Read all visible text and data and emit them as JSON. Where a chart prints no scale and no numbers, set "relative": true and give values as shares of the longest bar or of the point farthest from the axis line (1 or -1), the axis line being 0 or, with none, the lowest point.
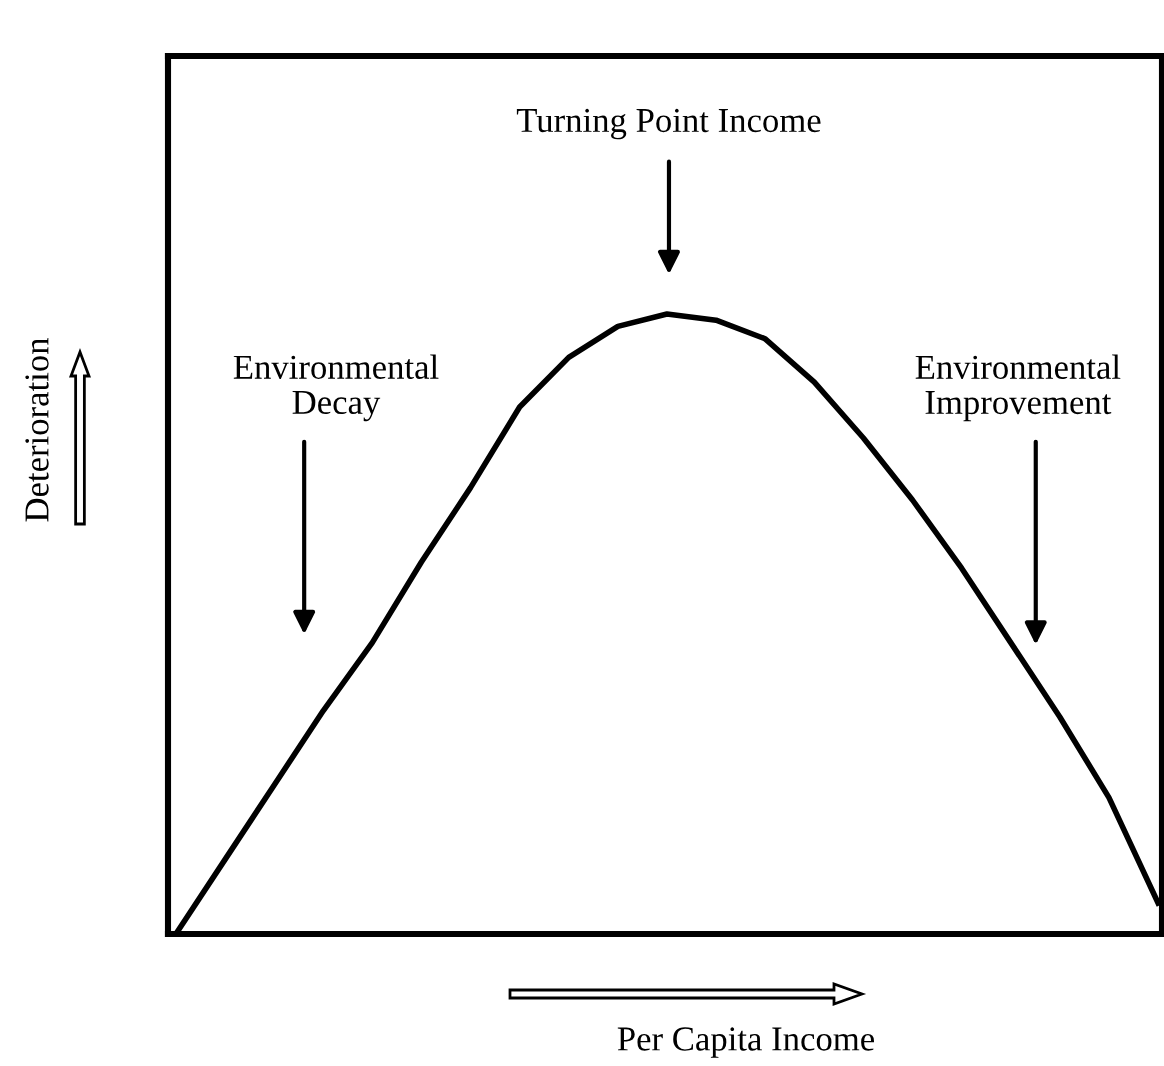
{
  "chart_data": {
    "type": "line",
    "relative": true,
    "xlabel": "Per Capita Income",
    "ylabel": "Deterioration",
    "categories": [
      null,
      null,
      null,
      null,
      null,
      null,
      null,
      null,
      null,
      null,
      null,
      null,
      null,
      null,
      null,
      null,
      null,
      null,
      null,
      null,
      null
    ],
    "series": [
      {
        "color": "#000000",
        "values": [
          0,
          0.12,
          0.24,
          0.36,
          0.47,
          0.6,
          0.72,
          0.85,
          0.93,
          0.98,
          1.0,
          0.99,
          0.96,
          0.89,
          0.8,
          0.7,
          0.59,
          0.47,
          0.35,
          0.22,
          0.05
        ]
      }
    ],
    "annotations": [
      "Turning Point Income",
      "Environmental\nDecay",
      "Environmental\nImprovement"
    ],
    "legend": false,
    "marker": "none",
    "line_style": "solid"
  }
}
